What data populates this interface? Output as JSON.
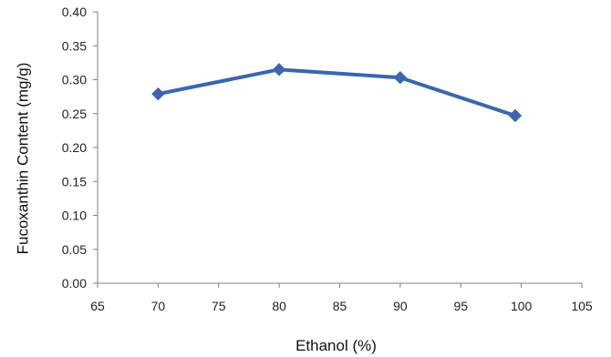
{
  "chart_data": {
    "type": "line",
    "title": "",
    "xlabel": "Ethanol (%)",
    "ylabel": "Fucoxanthin Content (mg/g)",
    "xlim": [
      65,
      105
    ],
    "ylim": [
      0,
      0.4
    ],
    "x_ticks": [
      65,
      70,
      75,
      80,
      85,
      90,
      95,
      100,
      105
    ],
    "y_ticks": [
      "0.00",
      "0.05",
      "0.10",
      "0.15",
      "0.20",
      "0.25",
      "0.30",
      "0.35",
      "0.40"
    ],
    "grid": false,
    "legend": "none",
    "series": [
      {
        "x": [
          70,
          80,
          90,
          99.5
        ],
        "y": [
          0.279,
          0.315,
          0.303,
          0.247
        ],
        "marker": "diamond",
        "color": "#3b66ae"
      }
    ]
  }
}
